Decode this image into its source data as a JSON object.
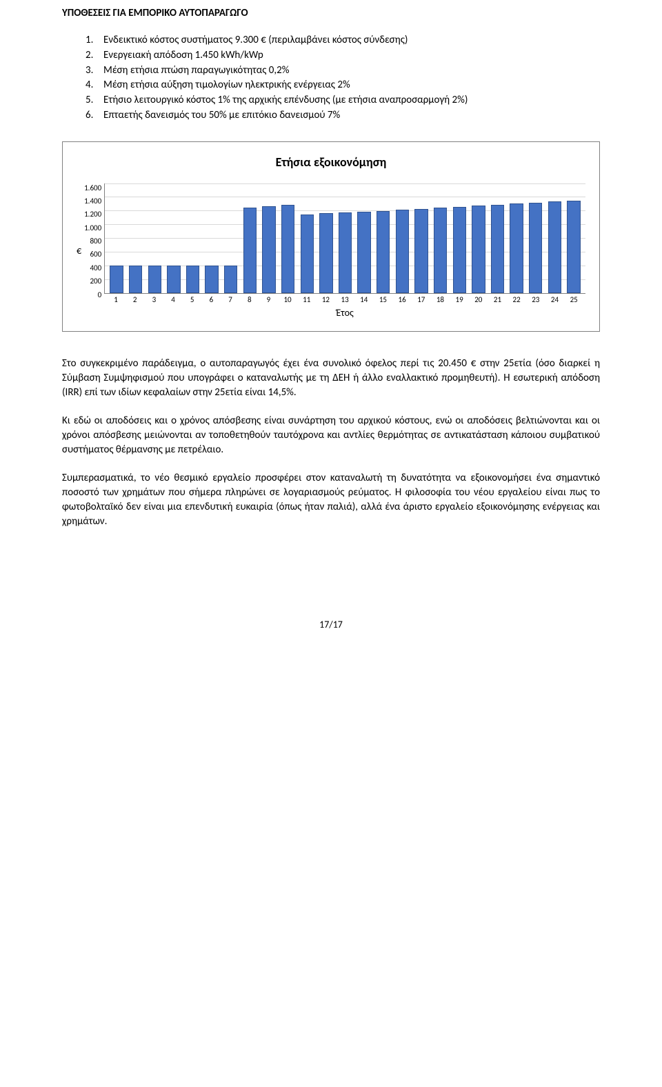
{
  "section_title": "ΥΠΟΘΕΣΕΙΣ ΓΙΑ ΕΜΠΟΡΙΚΟ ΑΥΤΟΠΑΡΑΓΩΓΟ",
  "list": [
    "Ενδεικτικό κόστος συστήματος 9.300 € (περιλαμβάνει κόστος σύνδεσης)",
    "Ενεργειακή απόδοση 1.450 kWh/kWp",
    "Μέση ετήσια πτώση παραγωγικότητας 0,2%",
    "Μέση ετήσια αύξηση τιμολογίων ηλεκτρικής ενέργειας 2%",
    "Ετήσιο λειτουργικό κόστος 1% της αρχικής επένδυσης (με ετήσια αναπροσαρμογή 2%)",
    "Επταετής δανεισμός του 50% με επιτόκιο δανεισμού 7%"
  ],
  "chart": {
    "title": "Ετήσια εξοικονόμηση",
    "y_axis_label": "€",
    "x_axis_label": "Έτος",
    "ymax": 1600,
    "y_ticks": [
      "1.600",
      "1.400",
      "1.200",
      "1.000",
      "800",
      "600",
      "400",
      "200",
      "0"
    ],
    "x_categories": [
      "1",
      "2",
      "3",
      "4",
      "5",
      "6",
      "7",
      "8",
      "9",
      "10",
      "11",
      "12",
      "13",
      "14",
      "15",
      "16",
      "17",
      "18",
      "19",
      "20",
      "21",
      "22",
      "23",
      "24",
      "25"
    ],
    "values": [
      400,
      400,
      400,
      400,
      400,
      400,
      400,
      1240,
      1260,
      1280,
      1140,
      1160,
      1170,
      1180,
      1190,
      1210,
      1220,
      1240,
      1250,
      1270,
      1280,
      1300,
      1310,
      1330,
      1340
    ],
    "bar_fill": "#4472c4",
    "bar_border": "#2f528f",
    "grid_color": "#d9d9d9",
    "background": "#ffffff"
  },
  "paragraphs": [
    "Στο συγκεκριμένο παράδειγμα, ο αυτοπαραγωγός έχει ένα συνολικό όφελος περί τις 20.450 € στην 25ετία (όσο διαρκεί η Σύμβαση Συμψηφισμού που υπογράφει ο καταναλωτής με τη ΔΕΗ ή άλλο εναλλακτικό προμηθευτή). Η εσωτερική απόδοση (IRR) επί των ιδίων κεφαλαίων στην 25ετία είναι 14,5%.",
    "Κι εδώ οι αποδόσεις και ο χρόνος απόσβεσης είναι συνάρτηση του αρχικού κόστους, ενώ οι αποδόσεις βελτιώνονται και οι χρόνοι απόσβεσης μειώνονται αν τοποθετηθούν ταυτόχρονα και αντλίες θερμότητας σε αντικατάσταση κάποιου συμβατικού συστήματος θέρμανσης με πετρέλαιο.",
    "Συμπερασματικά, το νέο θεσμικό εργαλείο προσφέρει στον καταναλωτή τη δυνατότητα να εξοικονομήσει ένα σημαντικό ποσοστό των χρημάτων που σήμερα πληρώνει σε λογαριασμούς ρεύματος. Η φιλοσοφία του νέου εργαλείου είναι πως το φωτοβολταϊκό δεν είναι μια επενδυτική ευκαιρία (όπως ήταν παλιά), αλλά ένα άριστο εργαλείο εξοικονόμησης ενέργειας και χρημάτων."
  ],
  "page_number": "17/17"
}
